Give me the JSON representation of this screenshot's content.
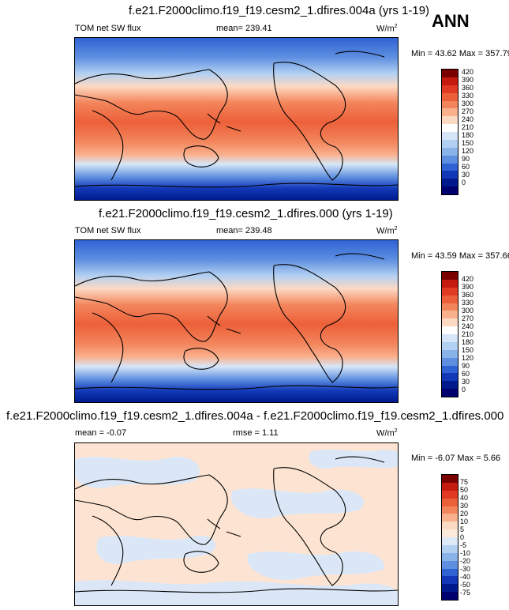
{
  "season": "ANN",
  "panels": [
    {
      "title": "f.e21.F2000climo.f19_f19.cesm2_1.dfires.004a (yrs 1-19)",
      "left_label": "TOM net SW flux",
      "center_label": "mean= 239.41",
      "units": "W/m",
      "units_sup": "2",
      "minmax": "Min =  43.62 Max = 357.79",
      "colorbar_labels": [
        "420",
        "390",
        "360",
        "330",
        "300",
        "270",
        "240",
        "210",
        "180",
        "150",
        "120",
        "90",
        "60",
        "30",
        "0"
      ],
      "colorbar_colors": [
        "#7a0000",
        "#c41a10",
        "#e03a22",
        "#ec6039",
        "#f3855c",
        "#f9b08d",
        "#fcd9c2",
        "#ffffff",
        "#d6e6f8",
        "#b2d0f2",
        "#8ab3ea",
        "#5e8fe0",
        "#2f63d4",
        "#1238b8",
        "#001a8e",
        "#00006e"
      ]
    },
    {
      "title": "f.e21.F2000climo.f19_f19.cesm2_1.dfires.000 (yrs 1-19)",
      "left_label": "TOM net SW flux",
      "center_label": "mean= 239.48",
      "units": "W/m",
      "units_sup": "2",
      "minmax": "Min =  43.59 Max = 357.66",
      "colorbar_labels": [
        "420",
        "390",
        "360",
        "330",
        "300",
        "270",
        "240",
        "210",
        "180",
        "150",
        "120",
        "90",
        "60",
        "30",
        "0"
      ],
      "colorbar_colors": [
        "#7a0000",
        "#c41a10",
        "#e03a22",
        "#ec6039",
        "#f3855c",
        "#f9b08d",
        "#fcd9c2",
        "#ffffff",
        "#d6e6f8",
        "#b2d0f2",
        "#8ab3ea",
        "#5e8fe0",
        "#2f63d4",
        "#1238b8",
        "#001a8e",
        "#00006e"
      ]
    },
    {
      "title": "f.e21.F2000climo.f19_f19.cesm2_1.dfires.004a - f.e21.F2000climo.f19_f19.cesm2_1.dfires.000",
      "left_label": "mean =  -0.07",
      "center_label": "rmse =   1.11",
      "units": "W/m",
      "units_sup": "2",
      "minmax": "Min =  -6.07 Max =   5.66",
      "colorbar_labels": [
        "75",
        "50",
        "40",
        "30",
        "20",
        "10",
        "5",
        "0",
        "-5",
        "-10",
        "-20",
        "-30",
        "-40",
        "-50",
        "-75"
      ],
      "colorbar_colors": [
        "#7a0000",
        "#c41a10",
        "#e03a22",
        "#ec6039",
        "#f3855c",
        "#f9b08d",
        "#fcd9c2",
        "#fde9dc",
        "#dde9f7",
        "#b2d0f2",
        "#8ab3ea",
        "#5e8fe0",
        "#2f63d4",
        "#1238b8",
        "#001a8e",
        "#00006e"
      ]
    }
  ],
  "colors": {
    "diff_positive": "#fde4d2",
    "diff_negative": "#dbe7f7",
    "coastline": "#000000"
  }
}
